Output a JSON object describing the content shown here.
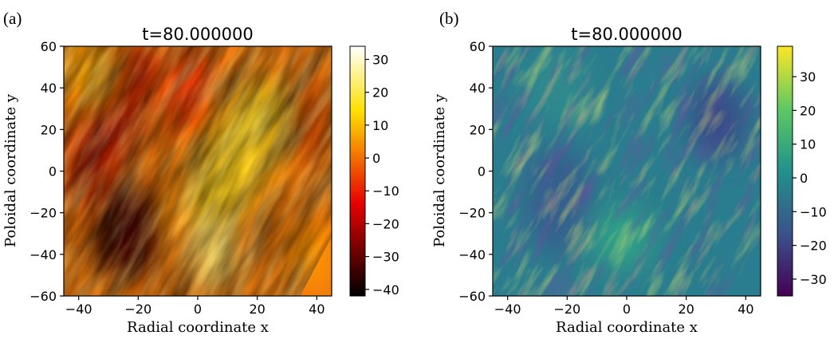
{
  "chart_data": [
    {
      "type": "heatmap",
      "panel_label": "(a)",
      "title": "t=80.000000",
      "xlabel": "Radial coordinate x",
      "ylabel": "Poloidal coordinate y",
      "xlim": [
        -45,
        45
      ],
      "ylim": [
        -60,
        60
      ],
      "xticks": [
        "−40",
        "−20",
        "0",
        "20",
        "40"
      ],
      "yticks": [
        "60",
        "40",
        "20",
        "0",
        "−20",
        "−40",
        "−60"
      ],
      "xtick_values": [
        -40,
        -20,
        0,
        20,
        40
      ],
      "ytick_values": [
        60,
        40,
        20,
        0,
        -20,
        -40,
        -60
      ],
      "colormap": "hot",
      "colorbar_range": [
        -42,
        34
      ],
      "colorbar_ticks": [
        "30",
        "20",
        "10",
        "0",
        "−10",
        "−20",
        "−30",
        "−40"
      ],
      "colorbar_tick_values": [
        30,
        20,
        10,
        0,
        -10,
        -20,
        -30,
        -40
      ],
      "field_description": "turbulent field with diagonal streaks; strong negative region near x=-20, y=-30"
    },
    {
      "type": "heatmap",
      "panel_label": "(b)",
      "title": "t=80.000000",
      "xlabel": "Radial coordinate x",
      "ylabel": "Poloidal coordinate y",
      "xlim": [
        -45,
        45
      ],
      "ylim": [
        -60,
        60
      ],
      "xticks": [
        "−40",
        "−20",
        "0",
        "20",
        "40"
      ],
      "yticks": [
        "60",
        "40",
        "20",
        "0",
        "−20",
        "−40",
        "−60"
      ],
      "xtick_values": [
        -40,
        -20,
        0,
        20,
        40
      ],
      "ytick_values": [
        60,
        40,
        20,
        0,
        -20,
        -40,
        -60
      ],
      "colormap": "viridis",
      "colorbar_range": [
        -35,
        39
      ],
      "colorbar_ticks": [
        "30",
        "20",
        "10",
        "0",
        "−10",
        "−20",
        "−30"
      ],
      "colorbar_tick_values": [
        30,
        20,
        10,
        0,
        -10,
        -20,
        -30
      ],
      "field_description": "small-scale turbulent field with diagonal streaks"
    }
  ]
}
